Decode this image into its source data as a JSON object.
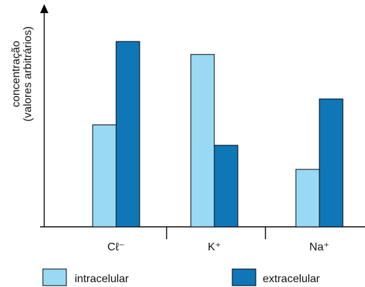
{
  "chart_data": {
    "type": "bar",
    "title": "",
    "xlabel": "",
    "ylabel": [
      "concentração",
      "(valores arbitrários)"
    ],
    "ylim": [
      0,
      100
    ],
    "categories": [
      "Cℓ⁻",
      "K⁺",
      "Na⁺"
    ],
    "series": [
      {
        "name": "intracelular",
        "values": [
          55,
          93,
          31
        ],
        "color": "#99d9f4"
      },
      {
        "name": "extracelular",
        "values": [
          100,
          44,
          69
        ],
        "color": "#0f77b8"
      }
    ],
    "legend_position": "bottom",
    "grid": false,
    "y_ticks": false
  }
}
